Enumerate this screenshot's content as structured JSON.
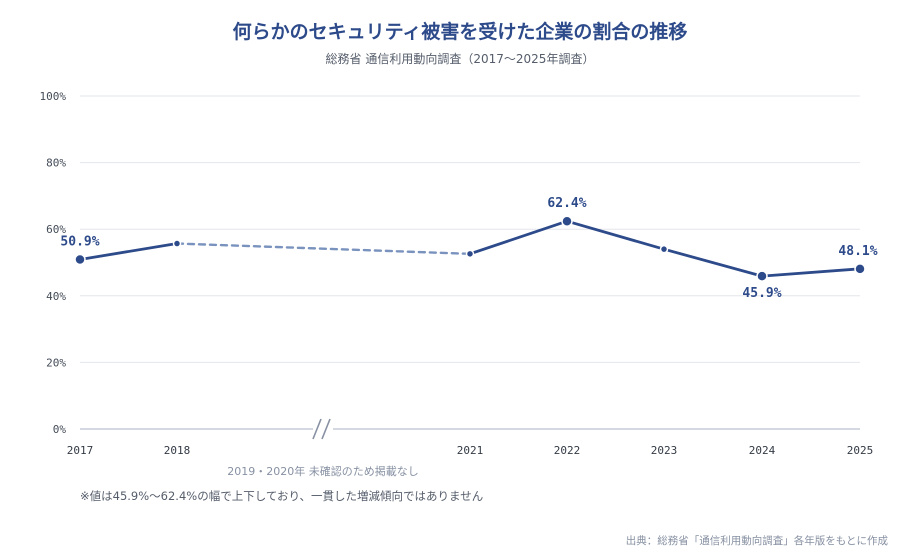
{
  "chart_data": {
    "type": "line",
    "title": "何らかのセキュリティ被害を受けた企業の割合の推移",
    "subtitle": "総務省 通信利用動向調査（2017〜2025年調査）",
    "y_tick_labels": [
      "0%",
      "20%",
      "40%",
      "60%",
      "80%",
      "100%"
    ],
    "y_ticks": [
      0,
      20,
      40,
      60,
      80,
      100
    ],
    "ylim": [
      0,
      100
    ],
    "grid": true,
    "x": [
      "2017",
      "2018",
      "2021",
      "2022",
      "2023",
      "2024",
      "2025"
    ],
    "values": [
      50.9,
      55.7,
      52.6,
      62.4,
      54.0,
      45.9,
      48.1
    ],
    "data_labels": [
      "50.9%",
      "",
      "",
      "62.4%",
      "",
      "45.9%",
      "48.1%"
    ],
    "axis_break_between": [
      "2018",
      "2021"
    ],
    "gap_note": "2019・2020年 未確認のため掲載なし",
    "colors": {
      "line": "#2d4a8a",
      "dashed": "#7a93be",
      "grid": "#e3e6ec",
      "axis": "#c5cbd6"
    }
  },
  "footnote": "※値は45.9%〜62.4%の幅で上下しており、一貫した増減傾向ではありません",
  "source": "出典：総務省「通信利用動向調査」各年版をもとに作成"
}
